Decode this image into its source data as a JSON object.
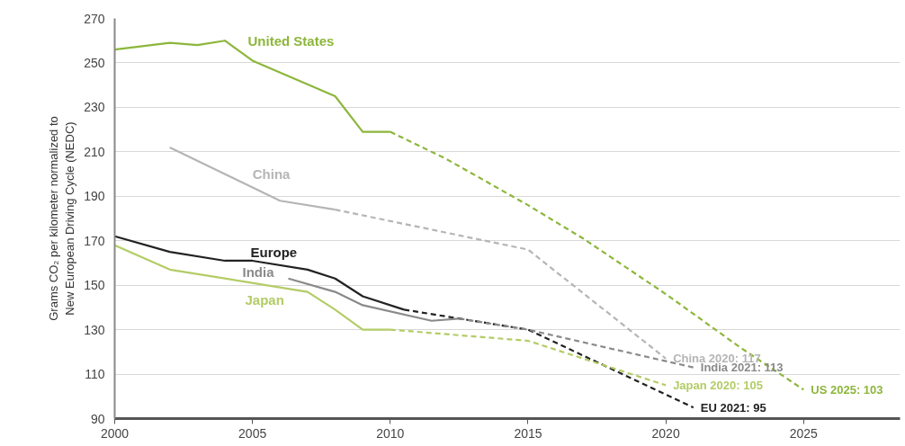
{
  "chart_data": {
    "type": "line",
    "ylabel": "Grams CO₂ per kilometer normalized to\nNew European Driving Cycle (NEDC)",
    "xlim": [
      2000,
      2028.5
    ],
    "xticks": [
      2000,
      2005,
      2010,
      2015,
      2020,
      2025
    ],
    "ylim": [
      90,
      270
    ],
    "yticks": [
      90,
      110,
      130,
      150,
      170,
      190,
      210,
      230,
      250,
      270
    ],
    "grid": "y",
    "legend": false,
    "marker": "none",
    "series": [
      {
        "name": "United States",
        "color": "#8db63c",
        "line_style": "solid",
        "x": [
          2000,
          2002,
          2003,
          2004,
          2005,
          2008,
          2009,
          2010
        ],
        "values": [
          256,
          259,
          258,
          260,
          251,
          235,
          219,
          219
        ]
      },
      {
        "color": "#8db63c",
        "line_style": "dashed",
        "x": [
          2010,
          2012,
          2015,
          2017,
          2020,
          2022.7,
          2025
        ],
        "values": [
          219,
          207,
          186,
          171,
          146,
          122,
          103
        ]
      },
      {
        "name": "China",
        "color": "#b5b5b5",
        "line_style": "solid",
        "x": [
          2002,
          2006,
          2008
        ],
        "values": [
          212,
          188,
          184
        ]
      },
      {
        "color": "#b5b5b5",
        "line_style": "dashed",
        "x": [
          2008,
          2015,
          2020
        ],
        "values": [
          184,
          166,
          117
        ]
      },
      {
        "name": "Europe",
        "color": "#222222",
        "line_style": "solid",
        "x": [
          2000,
          2002,
          2004,
          2005,
          2007,
          2008,
          2009,
          2010.5
        ],
        "values": [
          172,
          165,
          161,
          161,
          157,
          153,
          145,
          139
        ]
      },
      {
        "color": "#222222",
        "line_style": "dashed",
        "x": [
          2010.5,
          2015,
          2021
        ],
        "values": [
          139,
          130,
          95
        ]
      },
      {
        "name": "India",
        "color": "#8a8a8a",
        "line_style": "solid",
        "x": [
          2006.3,
          2008,
          2009,
          2011.5,
          2012.5
        ],
        "values": [
          153,
          147,
          141,
          134,
          135
        ]
      },
      {
        "color": "#8a8a8a",
        "line_style": "dashed",
        "x": [
          2012.5,
          2015,
          2021
        ],
        "values": [
          135,
          130,
          113
        ]
      },
      {
        "name": "Japan",
        "color": "#b3cc66",
        "line_style": "solid",
        "x": [
          2000,
          2002,
          2007,
          2008,
          2009,
          2010
        ],
        "values": [
          168,
          157,
          147,
          139,
          130,
          130
        ]
      },
      {
        "color": "#b3cc66",
        "line_style": "dashed",
        "x": [
          2010,
          2015,
          2020
        ],
        "values": [
          130,
          125,
          105
        ]
      }
    ],
    "annotations": [
      {
        "text": "China 2020: 117",
        "x": 2020,
        "y": 117
      },
      {
        "text": "India 2021: 113",
        "x": 2021,
        "y": 113
      },
      {
        "text": "Japan 2020: 105",
        "x": 2020,
        "y": 105
      },
      {
        "text": "US 2025: 103",
        "x": 2025,
        "y": 103
      },
      {
        "text": "EU 2021: 95",
        "x": 2021,
        "y": 95
      }
    ]
  }
}
